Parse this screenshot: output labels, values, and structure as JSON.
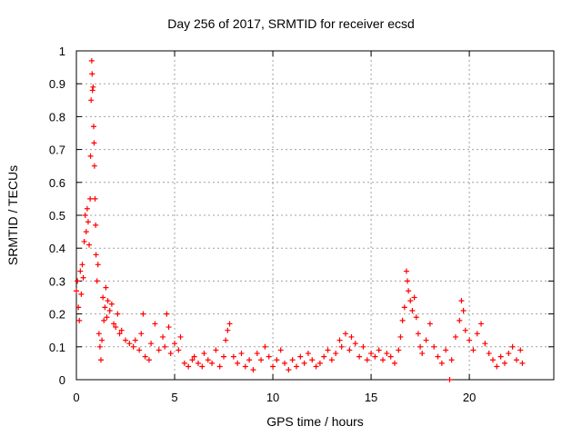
{
  "chart_data": {
    "type": "scatter",
    "title": "Day 256 of 2017, SRMTID for receiver ecsd",
    "xlabel": "GPS time / hours",
    "ylabel": "SRMTID / TECUs",
    "xlim": [
      0,
      24.3
    ],
    "ylim": [
      0,
      1
    ],
    "xticks": [
      0,
      5,
      10,
      15,
      20
    ],
    "xtick_labels": [
      "0",
      "5",
      "10",
      "15",
      "20"
    ],
    "yticks": [
      0,
      0.1,
      0.2,
      0.3,
      0.4,
      0.5,
      0.6,
      0.7,
      0.8,
      0.9,
      1
    ],
    "ytick_labels": [
      "0",
      "0.1",
      "0.2",
      "0.3",
      "0.4",
      "0.5",
      "0.6",
      "0.7",
      "0.8",
      "0.9",
      "1"
    ],
    "grid": true,
    "marker": "+",
    "series": [
      {
        "name": "SRMTID",
        "color": "#ff0000",
        "points": [
          [
            0.0,
            0.27
          ],
          [
            0.05,
            0.3
          ],
          [
            0.1,
            0.22
          ],
          [
            0.15,
            0.18
          ],
          [
            0.2,
            0.33
          ],
          [
            0.25,
            0.26
          ],
          [
            0.3,
            0.35
          ],
          [
            0.35,
            0.31
          ],
          [
            0.4,
            0.42
          ],
          [
            0.45,
            0.5
          ],
          [
            0.5,
            0.45
          ],
          [
            0.55,
            0.52
          ],
          [
            0.6,
            0.48
          ],
          [
            0.65,
            0.41
          ],
          [
            0.7,
            0.55
          ],
          [
            0.72,
            0.68
          ],
          [
            0.75,
            0.85
          ],
          [
            0.78,
            0.97
          ],
          [
            0.8,
            0.93
          ],
          [
            0.82,
            0.88
          ],
          [
            0.85,
            0.89
          ],
          [
            0.88,
            0.77
          ],
          [
            0.9,
            0.72
          ],
          [
            0.92,
            0.65
          ],
          [
            0.95,
            0.55
          ],
          [
            0.98,
            0.47
          ],
          [
            1.0,
            0.38
          ],
          [
            1.05,
            0.3
          ],
          [
            1.1,
            0.35
          ],
          [
            1.15,
            0.14
          ],
          [
            1.2,
            0.1
          ],
          [
            1.25,
            0.06
          ],
          [
            1.3,
            0.12
          ],
          [
            1.35,
            0.25
          ],
          [
            1.4,
            0.18
          ],
          [
            1.45,
            0.22
          ],
          [
            1.5,
            0.28
          ],
          [
            1.55,
            0.19
          ],
          [
            1.6,
            0.24
          ],
          [
            1.7,
            0.21
          ],
          [
            1.8,
            0.23
          ],
          [
            1.9,
            0.17
          ],
          [
            2.0,
            0.16
          ],
          [
            2.1,
            0.2
          ],
          [
            2.2,
            0.14
          ],
          [
            2.3,
            0.15
          ],
          [
            2.5,
            0.12
          ],
          [
            2.7,
            0.11
          ],
          [
            2.9,
            0.1
          ],
          [
            3.0,
            0.12
          ],
          [
            3.2,
            0.09
          ],
          [
            3.3,
            0.14
          ],
          [
            3.4,
            0.2
          ],
          [
            3.5,
            0.07
          ],
          [
            3.7,
            0.06
          ],
          [
            3.8,
            0.11
          ],
          [
            4.0,
            0.17
          ],
          [
            4.2,
            0.09
          ],
          [
            4.4,
            0.13
          ],
          [
            4.5,
            0.1
          ],
          [
            4.6,
            0.2
          ],
          [
            4.7,
            0.16
          ],
          [
            4.8,
            0.08
          ],
          [
            5.0,
            0.11
          ],
          [
            5.2,
            0.09
          ],
          [
            5.3,
            0.13
          ],
          [
            5.5,
            0.05
          ],
          [
            5.7,
            0.04
          ],
          [
            5.9,
            0.06
          ],
          [
            6.0,
            0.07
          ],
          [
            6.2,
            0.05
          ],
          [
            6.4,
            0.04
          ],
          [
            6.5,
            0.08
          ],
          [
            6.7,
            0.06
          ],
          [
            6.9,
            0.05
          ],
          [
            7.1,
            0.09
          ],
          [
            7.3,
            0.04
          ],
          [
            7.5,
            0.07
          ],
          [
            7.6,
            0.12
          ],
          [
            7.7,
            0.15
          ],
          [
            7.8,
            0.17
          ],
          [
            8.0,
            0.07
          ],
          [
            8.2,
            0.05
          ],
          [
            8.4,
            0.08
          ],
          [
            8.6,
            0.04
          ],
          [
            8.8,
            0.06
          ],
          [
            9.0,
            0.03
          ],
          [
            9.2,
            0.08
          ],
          [
            9.4,
            0.06
          ],
          [
            9.6,
            0.1
          ],
          [
            9.8,
            0.07
          ],
          [
            10.0,
            0.04
          ],
          [
            10.2,
            0.06
          ],
          [
            10.4,
            0.09
          ],
          [
            10.6,
            0.05
          ],
          [
            10.8,
            0.03
          ],
          [
            11.0,
            0.06
          ],
          [
            11.2,
            0.04
          ],
          [
            11.4,
            0.07
          ],
          [
            11.6,
            0.05
          ],
          [
            11.8,
            0.08
          ],
          [
            12.0,
            0.06
          ],
          [
            12.2,
            0.04
          ],
          [
            12.4,
            0.05
          ],
          [
            12.6,
            0.07
          ],
          [
            12.8,
            0.09
          ],
          [
            13.0,
            0.06
          ],
          [
            13.2,
            0.08
          ],
          [
            13.4,
            0.12
          ],
          [
            13.5,
            0.1
          ],
          [
            13.7,
            0.14
          ],
          [
            13.9,
            0.09
          ],
          [
            14.0,
            0.13
          ],
          [
            14.2,
            0.11
          ],
          [
            14.4,
            0.07
          ],
          [
            14.6,
            0.1
          ],
          [
            14.8,
            0.06
          ],
          [
            15.0,
            0.08
          ],
          [
            15.2,
            0.07
          ],
          [
            15.4,
            0.09
          ],
          [
            15.6,
            0.06
          ],
          [
            15.8,
            0.08
          ],
          [
            16.0,
            0.07
          ],
          [
            16.2,
            0.05
          ],
          [
            16.4,
            0.09
          ],
          [
            16.5,
            0.13
          ],
          [
            16.6,
            0.18
          ],
          [
            16.7,
            0.22
          ],
          [
            16.8,
            0.33
          ],
          [
            16.85,
            0.3
          ],
          [
            16.9,
            0.27
          ],
          [
            17.0,
            0.24
          ],
          [
            17.1,
            0.21
          ],
          [
            17.2,
            0.25
          ],
          [
            17.3,
            0.19
          ],
          [
            17.4,
            0.14
          ],
          [
            17.5,
            0.1
          ],
          [
            17.6,
            0.08
          ],
          [
            17.8,
            0.12
          ],
          [
            18.0,
            0.17
          ],
          [
            18.2,
            0.1
          ],
          [
            18.4,
            0.07
          ],
          [
            18.6,
            0.05
          ],
          [
            18.8,
            0.09
          ],
          [
            19.0,
            0.0
          ],
          [
            19.1,
            0.06
          ],
          [
            19.3,
            0.13
          ],
          [
            19.5,
            0.18
          ],
          [
            19.6,
            0.24
          ],
          [
            19.7,
            0.21
          ],
          [
            19.8,
            0.15
          ],
          [
            20.0,
            0.12
          ],
          [
            20.2,
            0.09
          ],
          [
            20.4,
            0.14
          ],
          [
            20.6,
            0.17
          ],
          [
            20.8,
            0.11
          ],
          [
            21.0,
            0.08
          ],
          [
            21.2,
            0.06
          ],
          [
            21.4,
            0.04
          ],
          [
            21.6,
            0.07
          ],
          [
            21.8,
            0.05
          ],
          [
            22.0,
            0.08
          ],
          [
            22.2,
            0.1
          ],
          [
            22.4,
            0.06
          ],
          [
            22.6,
            0.09
          ],
          [
            22.7,
            0.05
          ]
        ]
      }
    ]
  }
}
